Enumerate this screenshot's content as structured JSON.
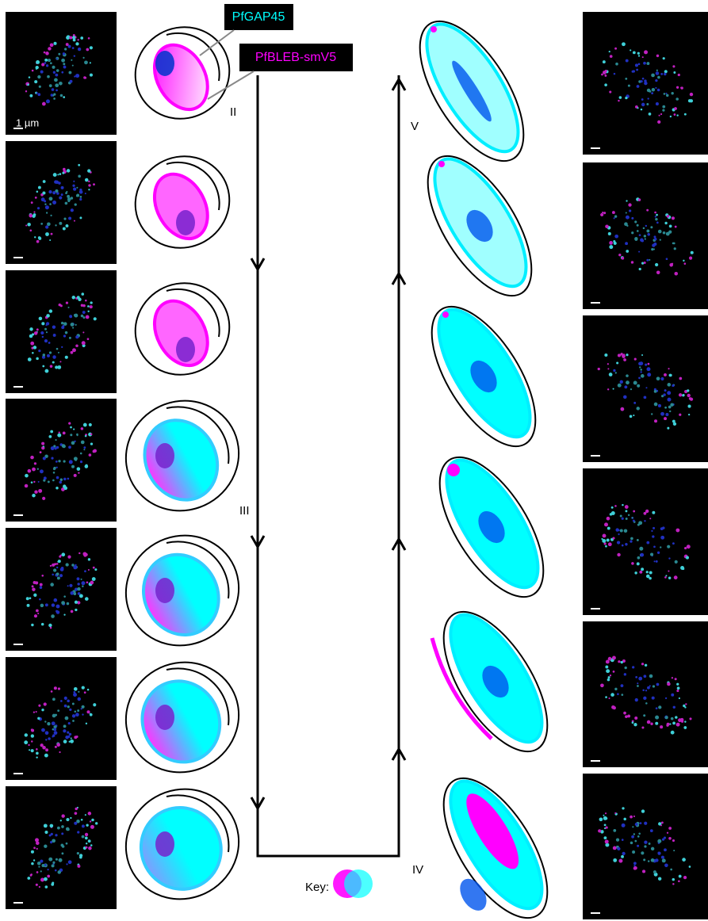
{
  "labels": {
    "gap45": "PfGAP45",
    "bleb": "PfBLEB-smV5",
    "scale": "1 µm",
    "stages": [
      "II",
      "III",
      "IV",
      "V"
    ],
    "key": "Key:"
  }
}
